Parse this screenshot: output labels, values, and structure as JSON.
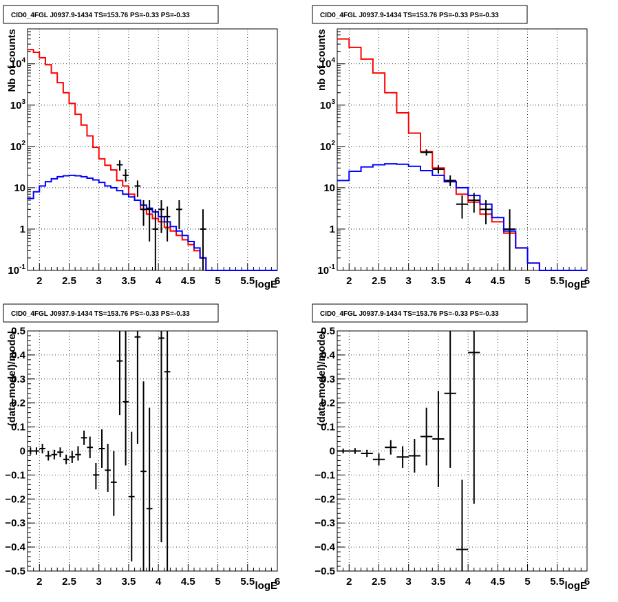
{
  "chart_data": [
    {
      "type": "step",
      "title": "CID0_4FGL J0937.9-1434 TS=153.76 PS=-0.33 PS=-0.33",
      "xlabel": "logE",
      "ylabel": "Nb of counts",
      "xlim": [
        1.8,
        6.0
      ],
      "ylim": [
        0.1,
        70000
      ],
      "yscale": "log",
      "grid": true,
      "xticks": [
        "2",
        "2.5",
        "3",
        "3.5",
        "4",
        "4.5",
        "5",
        "5.5",
        "6"
      ],
      "yticks": [
        "10^-1",
        "1",
        "10",
        "10^2",
        "10^3",
        "10^4"
      ],
      "series": [
        {
          "color": "#ff0000",
          "kind": "model-total",
          "bin_width": 0.1,
          "x": [
            1.85,
            1.95,
            2.05,
            2.15,
            2.25,
            2.35,
            2.45,
            2.55,
            2.65,
            2.75,
            2.85,
            2.95,
            3.05,
            3.15,
            3.25,
            3.35,
            3.45,
            3.55,
            3.65,
            3.75,
            3.85,
            3.95,
            4.05,
            4.15,
            4.25,
            4.35,
            4.45,
            4.55,
            4.65,
            4.75,
            4.85,
            4.95,
            5.05,
            5.15,
            5.25,
            5.35,
            5.45,
            5.55,
            5.65,
            5.75,
            5.85,
            5.95
          ],
          "values": [
            22000,
            19000,
            14000,
            9500,
            6000,
            3500,
            2000,
            1100,
            600,
            330,
            180,
            95,
            50,
            35,
            27,
            15,
            11,
            7,
            5,
            3,
            2.3,
            1.8,
            1.5,
            1.1,
            0.9,
            0.7,
            0.55,
            0.42,
            0.3,
            0.2,
            0.1,
            0.1,
            0.1,
            0.1,
            0.1,
            0.1,
            0.1,
            0.1,
            0.1,
            0.1,
            0.1,
            0.1
          ]
        },
        {
          "color": "#0000ff",
          "kind": "model-source",
          "bin_width": 0.1,
          "x": [
            1.85,
            1.95,
            2.05,
            2.15,
            2.25,
            2.35,
            2.45,
            2.55,
            2.65,
            2.75,
            2.85,
            2.95,
            3.05,
            3.15,
            3.25,
            3.35,
            3.45,
            3.55,
            3.65,
            3.75,
            3.85,
            3.95,
            4.05,
            4.15,
            4.25,
            4.35,
            4.45,
            4.55,
            4.65,
            4.75,
            4.85,
            4.95,
            5.05,
            5.15,
            5.25,
            5.35,
            5.45,
            5.55,
            5.65,
            5.75,
            5.85,
            5.95
          ],
          "values": [
            5.5,
            8,
            11,
            14,
            16.5,
            18.5,
            19.5,
            20,
            19.5,
            18.5,
            17,
            15.5,
            13.5,
            11,
            10,
            8.5,
            7,
            6,
            5,
            3.8,
            3.2,
            2.6,
            2,
            1.5,
            1.15,
            0.9,
            0.7,
            0.5,
            0.35,
            0.2,
            0.1,
            0.1,
            0.1,
            0.1,
            0.1,
            0.1,
            0.1,
            0.1,
            0.1,
            0.1,
            0.1,
            0.1
          ]
        },
        {
          "color": "#000000",
          "kind": "data",
          "xerr": 0.05,
          "points": [
            {
              "x": 3.35,
              "y": 36,
              "lo": 26,
              "hi": 46
            },
            {
              "x": 3.45,
              "y": 20,
              "lo": 14,
              "hi": 28
            },
            {
              "x": 3.65,
              "y": 11,
              "lo": 6,
              "hi": 15
            },
            {
              "x": 3.75,
              "y": 3,
              "lo": 1.2,
              "hi": 5
            },
            {
              "x": 3.85,
              "y": 3,
              "lo": 0.5,
              "hi": 5
            },
            {
              "x": 3.95,
              "y": 1,
              "lo": 0.1,
              "hi": 3
            },
            {
              "x": 4.05,
              "y": 3,
              "lo": 0.8,
              "hi": 5
            },
            {
              "x": 4.15,
              "y": 2,
              "lo": 0.5,
              "hi": 3.5
            },
            {
              "x": 4.35,
              "y": 3,
              "lo": 1,
              "hi": 5
            },
            {
              "x": 4.75,
              "y": 1,
              "lo": 0.1,
              "hi": 3
            }
          ]
        }
      ]
    },
    {
      "type": "step",
      "title": "CID0_4FGL J0937.9-1434 TS=153.76 PS=-0.33 PS=-0.33",
      "xlabel": "logE",
      "ylabel": "nb of counts",
      "xlim": [
        1.8,
        6.0
      ],
      "ylim": [
        0.1,
        70000
      ],
      "yscale": "log",
      "grid": true,
      "xticks": [
        "2",
        "2.5",
        "3",
        "3.5",
        "4",
        "4.5",
        "5",
        "5.5",
        "6"
      ],
      "yticks": [
        "10^-1",
        "1",
        "10",
        "10^2",
        "10^3",
        "10^4"
      ],
      "series": [
        {
          "color": "#ff0000",
          "kind": "model-total",
          "bin_width": 0.2,
          "x": [
            1.9,
            2.1,
            2.3,
            2.5,
            2.7,
            2.9,
            3.1,
            3.3,
            3.5,
            3.7,
            3.9,
            4.1,
            4.3,
            4.5,
            4.7,
            4.9,
            5.1,
            5.3,
            5.5,
            5.7,
            5.9
          ],
          "values": [
            40000,
            25000,
            13000,
            6000,
            2000,
            650,
            210,
            75,
            30,
            14,
            7,
            4.5,
            2.3,
            1.5,
            0.8,
            0.35,
            0.15,
            0.1,
            0.1,
            0.1,
            0.1
          ]
        },
        {
          "color": "#0000ff",
          "kind": "model-source",
          "bin_width": 0.2,
          "x": [
            1.9,
            2.1,
            2.3,
            2.5,
            2.7,
            2.9,
            3.1,
            3.3,
            3.5,
            3.7,
            3.9,
            4.1,
            4.3,
            4.5,
            4.7,
            4.9,
            5.1,
            5.3,
            5.5,
            5.7,
            5.9
          ],
          "values": [
            15,
            25,
            32,
            36,
            38,
            37,
            33,
            26,
            20,
            14,
            10,
            6.5,
            4,
            1.9,
            0.9,
            0.35,
            0.15,
            0.1,
            0.1,
            0.1,
            0.1
          ]
        },
        {
          "color": "#000000",
          "kind": "data",
          "xerr": 0.1,
          "points": [
            {
              "x": 3.3,
              "y": 72,
              "lo": 60,
              "hi": 85
            },
            {
              "x": 3.5,
              "y": 28,
              "lo": 22,
              "hi": 35
            },
            {
              "x": 3.7,
              "y": 15,
              "lo": 11,
              "hi": 20
            },
            {
              "x": 3.9,
              "y": 4,
              "lo": 1.8,
              "hi": 6.5
            },
            {
              "x": 4.1,
              "y": 5,
              "lo": 2.5,
              "hi": 7.5
            },
            {
              "x": 4.3,
              "y": 3,
              "lo": 1.3,
              "hi": 5
            },
            {
              "x": 4.7,
              "y": 1,
              "lo": 0.1,
              "hi": 3
            }
          ]
        }
      ]
    },
    {
      "type": "scatter",
      "title": "CID0_4FGL J0937.9-1434 TS=153.76 PS=-0.33 PS=-0.33",
      "xlabel": "logE",
      "ylabel": "(data-model)/model",
      "xlim": [
        1.8,
        6.0
      ],
      "ylim": [
        -0.5,
        0.5
      ],
      "grid": true,
      "xticks": [
        "2",
        "2.5",
        "3",
        "3.5",
        "4",
        "4.5",
        "5",
        "5.5",
        "6"
      ],
      "yticks": [
        "−0.5",
        "−0.4",
        "−0.3",
        "−0.2",
        "−0.1",
        "0",
        "0.1",
        "0.2",
        "0.3",
        "0.4",
        "0.5"
      ],
      "series": [
        {
          "color": "#000000",
          "kind": "residual",
          "xerr": 0.05,
          "points": [
            {
              "x": 1.85,
              "y": 0.0,
              "lo": -0.015,
              "hi": 0.015
            },
            {
              "x": 1.95,
              "y": 0.0,
              "lo": -0.015,
              "hi": 0.015
            },
            {
              "x": 2.05,
              "y": 0.01,
              "lo": -0.01,
              "hi": 0.03
            },
            {
              "x": 2.15,
              "y": -0.02,
              "lo": -0.04,
              "hi": 0.0
            },
            {
              "x": 2.25,
              "y": -0.015,
              "lo": -0.035,
              "hi": 0.005
            },
            {
              "x": 2.35,
              "y": -0.005,
              "lo": -0.025,
              "hi": 0.015
            },
            {
              "x": 2.45,
              "y": -0.035,
              "lo": -0.055,
              "hi": -0.015
            },
            {
              "x": 2.55,
              "y": -0.025,
              "lo": -0.05,
              "hi": 0.0
            },
            {
              "x": 2.65,
              "y": -0.015,
              "lo": -0.04,
              "hi": 0.02
            },
            {
              "x": 2.75,
              "y": 0.055,
              "lo": 0.025,
              "hi": 0.085
            },
            {
              "x": 2.85,
              "y": 0.015,
              "lo": -0.03,
              "hi": 0.06
            },
            {
              "x": 2.95,
              "y": -0.1,
              "lo": -0.16,
              "hi": -0.05
            },
            {
              "x": 3.05,
              "y": 0.01,
              "lo": -0.07,
              "hi": 0.09
            },
            {
              "x": 3.15,
              "y": -0.08,
              "lo": -0.17,
              "hi": 0.03
            },
            {
              "x": 3.25,
              "y": -0.13,
              "lo": -0.27,
              "hi": 0.0
            },
            {
              "x": 3.35,
              "y": 0.375,
              "lo": 0.15,
              "hi": 0.5
            },
            {
              "x": 3.45,
              "y": 0.205,
              "lo": -0.06,
              "hi": 0.5
            },
            {
              "x": 3.55,
              "y": -0.19,
              "lo": -0.46,
              "hi": 0.08
            },
            {
              "x": 3.65,
              "y": 0.475,
              "lo": 0.03,
              "hi": 0.5
            },
            {
              "x": 3.75,
              "y": -0.085,
              "lo": -0.5,
              "hi": 0.29
            },
            {
              "x": 3.85,
              "y": -0.24,
              "lo": -0.5,
              "hi": 0.18
            },
            {
              "x": 4.05,
              "y": 0.47,
              "lo": -0.38,
              "hi": 0.5
            },
            {
              "x": 4.15,
              "y": 0.33,
              "lo": -0.5,
              "hi": 0.5
            }
          ]
        }
      ]
    },
    {
      "type": "scatter",
      "title": "CID0_4FGL J0937.9-1434 TS=153.76 PS=-0.33 PS=-0.33",
      "xlabel": "logE",
      "ylabel": "(data-model)/model",
      "xlim": [
        1.8,
        6.0
      ],
      "ylim": [
        -0.5,
        0.5
      ],
      "grid": true,
      "xticks": [
        "2",
        "2.5",
        "3",
        "3.5",
        "4",
        "4.5",
        "5",
        "5.5",
        "6"
      ],
      "yticks": [
        "−0.5",
        "−0.4",
        "−0.3",
        "−0.2",
        "−0.1",
        "0",
        "0.1",
        "0.2",
        "0.3",
        "0.4",
        "0.5"
      ],
      "series": [
        {
          "color": "#000000",
          "kind": "residual",
          "xerr": 0.1,
          "points": [
            {
              "x": 1.9,
              "y": 0.0,
              "lo": -0.01,
              "hi": 0.01
            },
            {
              "x": 2.1,
              "y": 0.0,
              "lo": -0.012,
              "hi": 0.012
            },
            {
              "x": 2.3,
              "y": -0.01,
              "lo": -0.025,
              "hi": 0.005
            },
            {
              "x": 2.5,
              "y": -0.035,
              "lo": -0.06,
              "hi": -0.01
            },
            {
              "x": 2.7,
              "y": 0.015,
              "lo": -0.015,
              "hi": 0.045
            },
            {
              "x": 2.9,
              "y": -0.025,
              "lo": -0.07,
              "hi": 0.02
            },
            {
              "x": 3.1,
              "y": -0.02,
              "lo": -0.09,
              "hi": 0.05
            },
            {
              "x": 3.3,
              "y": 0.06,
              "lo": -0.06,
              "hi": 0.18
            },
            {
              "x": 3.5,
              "y": 0.05,
              "lo": -0.15,
              "hi": 0.25
            },
            {
              "x": 3.7,
              "y": 0.24,
              "lo": -0.07,
              "hi": 0.5
            },
            {
              "x": 3.9,
              "y": -0.41,
              "lo": -0.5,
              "hi": -0.12
            },
            {
              "x": 4.1,
              "y": 0.41,
              "lo": -0.22,
              "hi": 0.5
            }
          ]
        }
      ]
    }
  ]
}
